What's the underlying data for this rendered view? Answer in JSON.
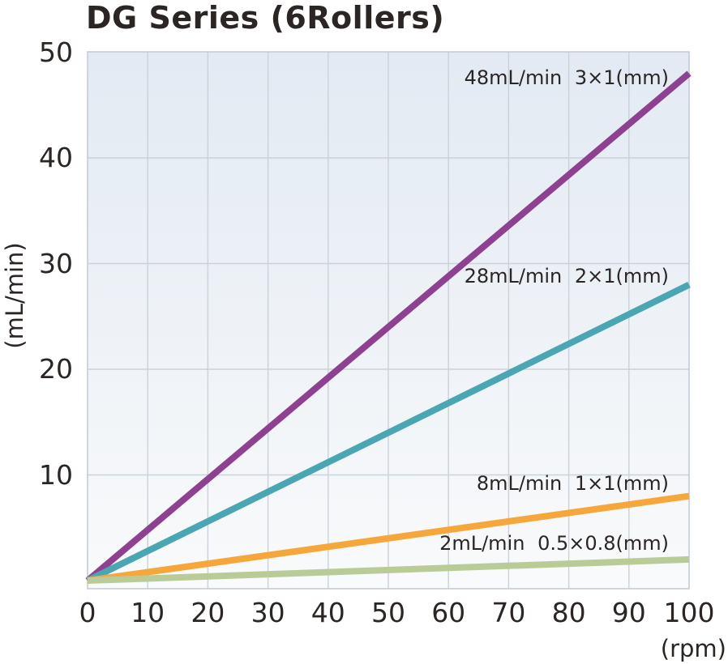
{
  "page": {
    "background": "#ffffff"
  },
  "chart_data": {
    "type": "line",
    "title": "DG Series (6Rollers)",
    "xlabel": "(rpm)",
    "ylabel": "(mL/min)",
    "xlim": [
      0,
      100
    ],
    "ylim": [
      0,
      50
    ],
    "xticks": [
      0,
      10,
      20,
      30,
      40,
      50,
      60,
      70,
      80,
      90,
      100
    ],
    "yticks": [
      10,
      20,
      30,
      40,
      50
    ],
    "grid": true,
    "legend_position": "inline-labels",
    "series": [
      {
        "name": "3×1(mm)",
        "label": "48mL/min 3×1(mm)",
        "color": "#8e4190",
        "flow_mL_min_at_100rpm": 48,
        "x": [
          0,
          100
        ],
        "y": [
          0,
          48
        ]
      },
      {
        "name": "2×1(mm)",
        "label": "28mL/min 2×1(mm)",
        "color": "#4aa6b2",
        "flow_mL_min_at_100rpm": 28,
        "x": [
          0,
          100
        ],
        "y": [
          0,
          28
        ]
      },
      {
        "name": "1×1(mm)",
        "label": "8mL/min 1×1(mm)",
        "color": "#f6a73c",
        "flow_mL_min_at_100rpm": 8,
        "x": [
          0,
          100
        ],
        "y": [
          0,
          8
        ]
      },
      {
        "name": "0.5×0.8(mm)",
        "label": "2mL/min 0.5×0.8(mm)",
        "color": "#b9cc97",
        "flow_mL_min_at_100rpm": 2,
        "x": [
          0,
          100
        ],
        "y": [
          0,
          2
        ]
      }
    ],
    "colors": {
      "text": "#2b2523",
      "grid": "#cbd1d9",
      "plot_border": "#c3c9d3",
      "plot_bg_top": "#e3eaf3",
      "plot_bg_bottom": "#f9fafb"
    }
  }
}
